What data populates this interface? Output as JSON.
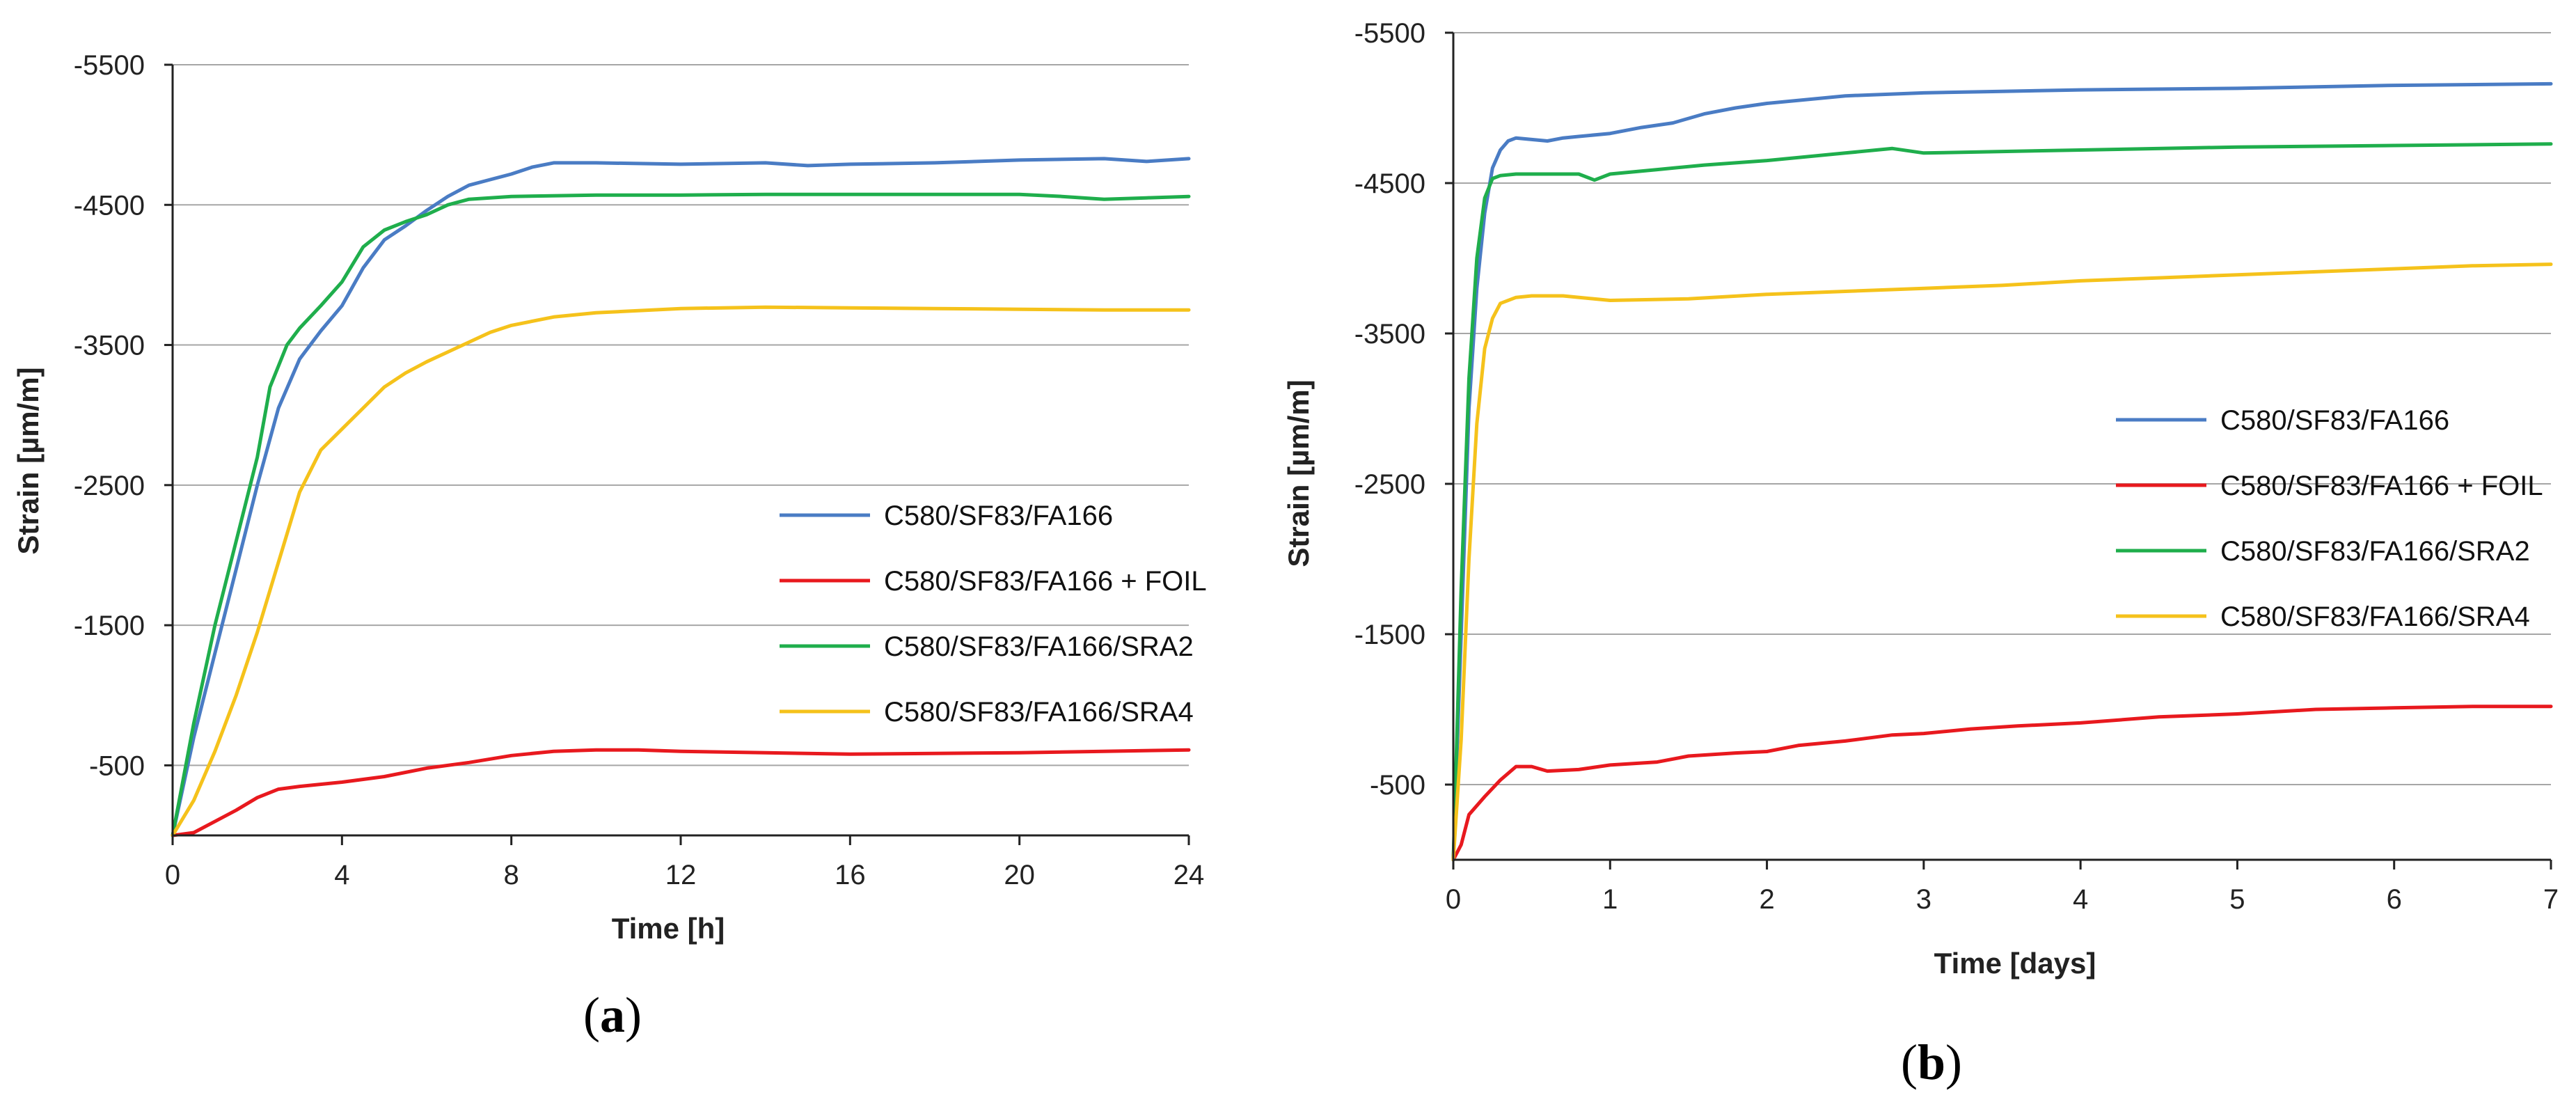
{
  "chart_data": [
    {
      "type": "line",
      "panel_label": "a",
      "xlabel": "Time [h]",
      "ylabel": "Strain [µm/m]",
      "xlim": [
        0,
        24
      ],
      "ylim": [
        0,
        -5500
      ],
      "xticks": [
        0,
        4,
        8,
        12,
        16,
        20,
        24
      ],
      "yticks": [
        -500,
        -1500,
        -2500,
        -3500,
        -4500,
        -5500
      ],
      "legend_position": "right-middle",
      "series": [
        {
          "name": "C580/SF83/FA166",
          "color": "#4a7cc4",
          "points": [
            [
              0,
              0
            ],
            [
              0.5,
              -700
            ],
            [
              1,
              -1300
            ],
            [
              1.5,
              -1900
            ],
            [
              2,
              -2500
            ],
            [
              2.5,
              -3050
            ],
            [
              3,
              -3400
            ],
            [
              3.5,
              -3600
            ],
            [
              4,
              -3780
            ],
            [
              4.5,
              -4050
            ],
            [
              5,
              -4250
            ],
            [
              5.5,
              -4350
            ],
            [
              6,
              -4460
            ],
            [
              6.5,
              -4560
            ],
            [
              7,
              -4640
            ],
            [
              7.5,
              -4680
            ],
            [
              8,
              -4720
            ],
            [
              8.5,
              -4770
            ],
            [
              9,
              -4800
            ],
            [
              10,
              -4800
            ],
            [
              12,
              -4790
            ],
            [
              14,
              -4800
            ],
            [
              15,
              -4780
            ],
            [
              16,
              -4790
            ],
            [
              18,
              -4800
            ],
            [
              20,
              -4820
            ],
            [
              22,
              -4830
            ],
            [
              23,
              -4810
            ],
            [
              24,
              -4830
            ]
          ]
        },
        {
          "name": "C580/SF83/FA166 + FOIL",
          "color": "#e8191e",
          "points": [
            [
              0,
              0
            ],
            [
              0.5,
              -20
            ],
            [
              1,
              -100
            ],
            [
              1.5,
              -180
            ],
            [
              2,
              -270
            ],
            [
              2.5,
              -330
            ],
            [
              3,
              -350
            ],
            [
              4,
              -380
            ],
            [
              5,
              -420
            ],
            [
              6,
              -480
            ],
            [
              7,
              -520
            ],
            [
              8,
              -570
            ],
            [
              9,
              -600
            ],
            [
              10,
              -610
            ],
            [
              11,
              -610
            ],
            [
              12,
              -600
            ],
            [
              14,
              -590
            ],
            [
              16,
              -580
            ],
            [
              18,
              -585
            ],
            [
              20,
              -590
            ],
            [
              22,
              -600
            ],
            [
              24,
              -610
            ]
          ]
        },
        {
          "name": "C580/SF83/FA166/SRA2",
          "color": "#1fae4c",
          "points": [
            [
              0,
              0
            ],
            [
              0.5,
              -800
            ],
            [
              1,
              -1500
            ],
            [
              1.5,
              -2100
            ],
            [
              2,
              -2700
            ],
            [
              2.3,
              -3200
            ],
            [
              2.7,
              -3500
            ],
            [
              3,
              -3620
            ],
            [
              3.5,
              -3780
            ],
            [
              4,
              -3950
            ],
            [
              4.5,
              -4200
            ],
            [
              5,
              -4320
            ],
            [
              5.5,
              -4380
            ],
            [
              6,
              -4430
            ],
            [
              6.5,
              -4500
            ],
            [
              7,
              -4540
            ],
            [
              8,
              -4560
            ],
            [
              10,
              -4570
            ],
            [
              12,
              -4570
            ],
            [
              14,
              -4575
            ],
            [
              16,
              -4575
            ],
            [
              18,
              -4575
            ],
            [
              20,
              -4575
            ],
            [
              21,
              -4560
            ],
            [
              22,
              -4540
            ],
            [
              23,
              -4550
            ],
            [
              24,
              -4560
            ]
          ]
        },
        {
          "name": "C580/SF83/FA166/SRA4",
          "color": "#f5c21b",
          "points": [
            [
              0,
              0
            ],
            [
              0.5,
              -250
            ],
            [
              1,
              -600
            ],
            [
              1.5,
              -1000
            ],
            [
              2,
              -1450
            ],
            [
              2.5,
              -1950
            ],
            [
              3,
              -2450
            ],
            [
              3.5,
              -2750
            ],
            [
              4,
              -2900
            ],
            [
              4.5,
              -3050
            ],
            [
              5,
              -3200
            ],
            [
              5.5,
              -3300
            ],
            [
              6,
              -3380
            ],
            [
              6.5,
              -3450
            ],
            [
              7,
              -3520
            ],
            [
              7.5,
              -3590
            ],
            [
              8,
              -3640
            ],
            [
              9,
              -3700
            ],
            [
              10,
              -3730
            ],
            [
              12,
              -3760
            ],
            [
              14,
              -3770
            ],
            [
              16,
              -3765
            ],
            [
              18,
              -3760
            ],
            [
              20,
              -3755
            ],
            [
              22,
              -3750
            ],
            [
              24,
              -3750
            ]
          ]
        }
      ]
    },
    {
      "type": "line",
      "panel_label": "b",
      "xlabel": "Time [days]",
      "ylabel": "Strain [µm/m]",
      "xlim": [
        0,
        7
      ],
      "ylim": [
        0,
        -5500
      ],
      "xticks": [
        0,
        1,
        2,
        3,
        4,
        5,
        6,
        7
      ],
      "yticks": [
        -500,
        -1500,
        -2500,
        -3500,
        -4500,
        -5500
      ],
      "legend_position": "right-middle",
      "series": [
        {
          "name": "C580/SF83/FA166",
          "color": "#4a7cc4",
          "points": [
            [
              0,
              0
            ],
            [
              0.05,
              -1500
            ],
            [
              0.1,
              -3000
            ],
            [
              0.15,
              -3800
            ],
            [
              0.2,
              -4300
            ],
            [
              0.25,
              -4600
            ],
            [
              0.3,
              -4720
            ],
            [
              0.35,
              -4780
            ],
            [
              0.4,
              -4800
            ],
            [
              0.5,
              -4790
            ],
            [
              0.6,
              -4780
            ],
            [
              0.7,
              -4800
            ],
            [
              0.8,
              -4810
            ],
            [
              1,
              -4830
            ],
            [
              1.2,
              -4870
            ],
            [
              1.4,
              -4900
            ],
            [
              1.6,
              -4960
            ],
            [
              1.8,
              -5000
            ],
            [
              2,
              -5030
            ],
            [
              2.5,
              -5080
            ],
            [
              3,
              -5100
            ],
            [
              3.5,
              -5110
            ],
            [
              4,
              -5120
            ],
            [
              5,
              -5130
            ],
            [
              6,
              -5150
            ],
            [
              7,
              -5160
            ]
          ]
        },
        {
          "name": "C580/SF83/FA166 + FOIL",
          "color": "#e8191e",
          "points": [
            [
              0,
              0
            ],
            [
              0.05,
              -100
            ],
            [
              0.1,
              -300
            ],
            [
              0.2,
              -420
            ],
            [
              0.3,
              -530
            ],
            [
              0.4,
              -620
            ],
            [
              0.5,
              -620
            ],
            [
              0.6,
              -590
            ],
            [
              0.8,
              -600
            ],
            [
              1,
              -630
            ],
            [
              1.3,
              -650
            ],
            [
              1.5,
              -690
            ],
            [
              1.8,
              -710
            ],
            [
              2,
              -720
            ],
            [
              2.2,
              -760
            ],
            [
              2.5,
              -790
            ],
            [
              2.8,
              -830
            ],
            [
              3,
              -840
            ],
            [
              3.3,
              -870
            ],
            [
              3.6,
              -890
            ],
            [
              4,
              -910
            ],
            [
              4.5,
              -950
            ],
            [
              5,
              -970
            ],
            [
              5.5,
              -1000
            ],
            [
              6,
              -1010
            ],
            [
              6.5,
              -1020
            ],
            [
              7,
              -1020
            ]
          ]
        },
        {
          "name": "C580/SF83/FA166/SRA2",
          "color": "#1fae4c",
          "points": [
            [
              0,
              0
            ],
            [
              0.05,
              -1800
            ],
            [
              0.1,
              -3200
            ],
            [
              0.15,
              -4000
            ],
            [
              0.2,
              -4400
            ],
            [
              0.25,
              -4530
            ],
            [
              0.3,
              -4550
            ],
            [
              0.4,
              -4560
            ],
            [
              0.6,
              -4560
            ],
            [
              0.8,
              -4560
            ],
            [
              0.9,
              -4520
            ],
            [
              1,
              -4560
            ],
            [
              1.3,
              -4590
            ],
            [
              1.6,
              -4620
            ],
            [
              2,
              -4650
            ],
            [
              2.5,
              -4700
            ],
            [
              2.8,
              -4730
            ],
            [
              3,
              -4700
            ],
            [
              3.5,
              -4710
            ],
            [
              4,
              -4720
            ],
            [
              5,
              -4740
            ],
            [
              6,
              -4750
            ],
            [
              7,
              -4760
            ]
          ]
        },
        {
          "name": "C580/SF83/FA166/SRA4",
          "color": "#f5c21b",
          "points": [
            [
              0,
              0
            ],
            [
              0.05,
              -800
            ],
            [
              0.1,
              -2000
            ],
            [
              0.15,
              -2900
            ],
            [
              0.2,
              -3400
            ],
            [
              0.25,
              -3600
            ],
            [
              0.3,
              -3700
            ],
            [
              0.4,
              -3740
            ],
            [
              0.5,
              -3750
            ],
            [
              0.7,
              -3750
            ],
            [
              1,
              -3720
            ],
            [
              1.5,
              -3730
            ],
            [
              2,
              -3760
            ],
            [
              2.5,
              -3780
            ],
            [
              3,
              -3800
            ],
            [
              3.5,
              -3820
            ],
            [
              4,
              -3850
            ],
            [
              4.5,
              -3870
            ],
            [
              5,
              -3890
            ],
            [
              5.5,
              -3910
            ],
            [
              6,
              -3930
            ],
            [
              6.5,
              -3950
            ],
            [
              7,
              -3960
            ]
          ]
        }
      ]
    }
  ]
}
